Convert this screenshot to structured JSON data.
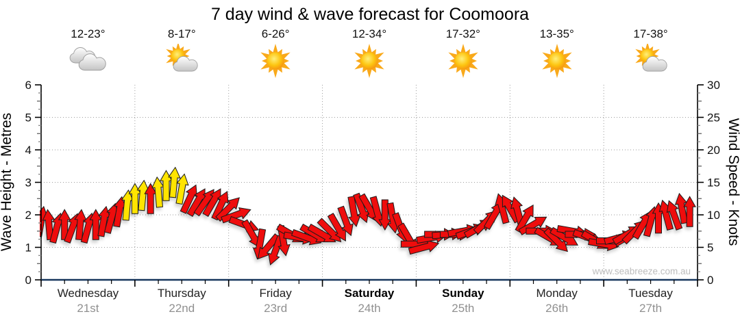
{
  "header": {
    "title": "7 day wind & wave forecast for Coomoora"
  },
  "days": [
    {
      "name": "Wednesday",
      "date": "21st",
      "temp": "12-23°",
      "icon": "cloudy",
      "weekend": false
    },
    {
      "name": "Thursday",
      "date": "22nd",
      "temp": "8-17°",
      "icon": "partly-cloudy",
      "weekend": false
    },
    {
      "name": "Friday",
      "date": "23rd",
      "temp": "6-26°",
      "icon": "sunny",
      "weekend": false
    },
    {
      "name": "Saturday",
      "date": "24th",
      "temp": "12-34°",
      "icon": "sunny",
      "weekend": true
    },
    {
      "name": "Sunday",
      "date": "25th",
      "temp": "17-32°",
      "icon": "sunny",
      "weekend": true
    },
    {
      "name": "Monday",
      "date": "26th",
      "temp": "13-35°",
      "icon": "sunny",
      "weekend": false
    },
    {
      "name": "Tuesday",
      "date": "27th",
      "temp": "17-38°",
      "icon": "partly-cloudy",
      "weekend": false
    }
  ],
  "axes": {
    "left": {
      "label": "Wave Height - Metres",
      "ticks": [
        "0",
        "1",
        "2",
        "3",
        "4",
        "5",
        "6"
      ],
      "range": [
        0,
        6
      ]
    },
    "right": {
      "label": "Wind Speed - Knots",
      "ticks": [
        "0",
        "5",
        "10",
        "15",
        "20",
        "25",
        "30"
      ],
      "range": [
        0,
        30
      ]
    }
  },
  "watermark": "www.seabreeze.com.au",
  "colors": {
    "arrow_strong": "#ee0a0a",
    "arrow_light": "#ffe400",
    "arrow_outline": "#1a1a1a",
    "axis_base": "#17365d",
    "axis_line": "#000000",
    "grid": "#9a9a9a",
    "tick_text": "#111111",
    "date_text": "#909090",
    "watermark_text": "#bdbdbd"
  },
  "chart_data": {
    "type": "line",
    "style": "wind-direction-arrows",
    "title": "7 day wind & wave forecast for Coomoora",
    "x_start": "Wednesday 21st 00:00",
    "x_step_hours": 2,
    "x_days": [
      "Wednesday 21st",
      "Thursday 22nd",
      "Friday 23rd",
      "Saturday 24th",
      "Sunday 25th",
      "Monday 26th",
      "Tuesday 27th"
    ],
    "ylabel_left": "Wave Height - Metres",
    "ylabel_right": "Wind Speed - Knots",
    "ylim_knots": [
      0,
      30
    ],
    "ylim_metres": [
      0,
      6
    ],
    "grid": "dotted, horizontal each metre, vertical each midnight",
    "legend": "red arrows = stronger wind, yellow arrows = lighter wind, arrow angle = wind direction",
    "wind_knots": [
      9,
      8.5,
      8,
      8.5,
      8,
      8.5,
      8,
      8.5,
      9,
      9.5,
      10.5,
      11.5,
      12.5,
      13,
      12.5,
      13.5,
      14.5,
      15,
      14,
      12.5,
      12,
      12,
      12,
      11.5,
      11,
      10,
      8.5,
      7,
      5.5,
      5,
      4.5,
      6,
      7,
      6.5,
      6.5,
      7,
      7,
      7.5,
      8,
      9,
      10.5,
      11,
      11,
      10.5,
      10,
      9.5,
      8,
      6.5,
      5.5,
      5,
      6.5,
      7,
      7,
      7,
      7.5,
      7.5,
      8,
      9,
      10,
      11,
      11,
      10.5,
      9.5,
      8.5,
      7.5,
      6.5,
      6,
      6.5,
      7.5,
      7,
      6.5,
      6,
      5.5,
      6,
      6.5,
      7,
      7.5,
      8.5,
      9,
      9.5,
      10,
      10,
      11,
      10.5
    ],
    "wind_dir_deg": [
      10,
      -5,
      15,
      0,
      20,
      5,
      15,
      0,
      10,
      15,
      10,
      5,
      0,
      5,
      0,
      -5,
      0,
      5,
      10,
      25,
      30,
      35,
      30,
      25,
      45,
      70,
      110,
      150,
      190,
      220,
      200,
      170,
      120,
      100,
      110,
      120,
      120,
      135,
      150,
      160,
      170,
      160,
      150,
      165,
      180,
      170,
      160,
      150,
      90,
      75,
      80,
      90,
      85,
      90,
      80,
      70,
      60,
      45,
      30,
      -15,
      -30,
      -15,
      30,
      60,
      90,
      120,
      135,
      120,
      100,
      90,
      110,
      120,
      100,
      90,
      75,
      60,
      45,
      30,
      15,
      0,
      -15,
      -20,
      -10,
      0
    ],
    "arrow_colors": "rrrrrrrrrrryyyryyyyrrrrrrrrrrrrrrrrrrrrrrrrrrrrrrrrrrrrrrrrrrrrrrrrrrrrrrrrrrrrrrrr"
  }
}
